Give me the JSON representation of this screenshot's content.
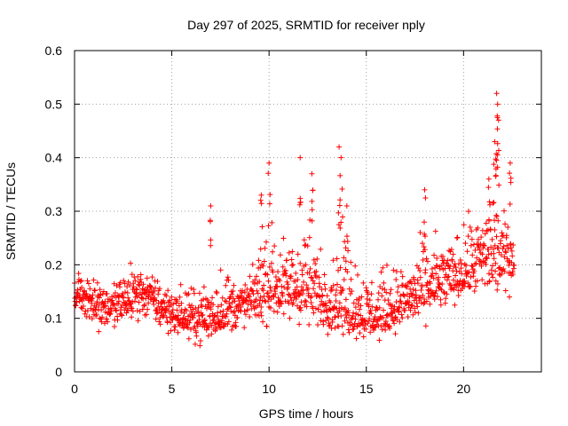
{
  "chart_data": {
    "type": "scatter",
    "title": "Day 297 of 2025, SRMTID for receiver nply",
    "xlabel": "GPS time / hours",
    "ylabel": "SRMTID / TECUs",
    "xlim": [
      0,
      24
    ],
    "ylim": [
      0,
      0.6
    ],
    "xticks": [
      0,
      5,
      10,
      15,
      20
    ],
    "yticks": [
      0,
      0.1,
      0.2,
      0.3,
      0.4,
      0.5,
      0.6
    ],
    "x_tick_labels": [
      "0",
      "5",
      "10",
      "15",
      "20"
    ],
    "y_tick_labels": [
      "0",
      "0.1",
      "0.2",
      "0.3",
      "0.4",
      "0.5",
      "0.6"
    ],
    "grid": true,
    "marker": "+",
    "color": "#ff0000",
    "envelope": {
      "description": "Approximate per-hour band of the scattered SRMTID values (lower, typical, upper) estimated from the plot",
      "hours": [
        0,
        0.5,
        1,
        1.5,
        2,
        2.5,
        3,
        3.5,
        4,
        4.5,
        5,
        5.5,
        6,
        6.5,
        7,
        7.5,
        8,
        8.5,
        9,
        9.5,
        10,
        10.5,
        11,
        11.5,
        12,
        12.5,
        13,
        13.5,
        14,
        14.5,
        15,
        15.5,
        16,
        16.5,
        17,
        17.5,
        18,
        18.5,
        19,
        19.5,
        20,
        20.5,
        21,
        21.5,
        22,
        22.5
      ],
      "lower": [
        0.1,
        0.08,
        0.07,
        0.06,
        0.07,
        0.07,
        0.08,
        0.08,
        0.07,
        0.06,
        0.06,
        0.06,
        0.05,
        0.04,
        0.03,
        0.05,
        0.06,
        0.06,
        0.08,
        0.08,
        0.05,
        0.05,
        0.07,
        0.06,
        0.07,
        0.07,
        0.06,
        0.05,
        0.05,
        0.05,
        0.05,
        0.04,
        0.06,
        0.06,
        0.07,
        0.07,
        0.08,
        0.08,
        0.09,
        0.1,
        0.11,
        0.12,
        0.11,
        0.11,
        0.11,
        0.14
      ],
      "typical": [
        0.15,
        0.14,
        0.13,
        0.12,
        0.12,
        0.13,
        0.14,
        0.15,
        0.14,
        0.12,
        0.11,
        0.1,
        0.1,
        0.1,
        0.1,
        0.11,
        0.12,
        0.12,
        0.13,
        0.14,
        0.17,
        0.16,
        0.15,
        0.16,
        0.15,
        0.14,
        0.13,
        0.13,
        0.12,
        0.11,
        0.1,
        0.1,
        0.11,
        0.12,
        0.13,
        0.14,
        0.15,
        0.16,
        0.17,
        0.18,
        0.19,
        0.2,
        0.21,
        0.22,
        0.21,
        0.22
      ],
      "upper": [
        0.25,
        0.21,
        0.2,
        0.18,
        0.18,
        0.21,
        0.24,
        0.2,
        0.19,
        0.19,
        0.17,
        0.18,
        0.17,
        0.18,
        0.21,
        0.23,
        0.21,
        0.19,
        0.2,
        0.25,
        0.33,
        0.28,
        0.26,
        0.34,
        0.36,
        0.28,
        0.22,
        0.28,
        0.33,
        0.26,
        0.22,
        0.2,
        0.23,
        0.22,
        0.22,
        0.24,
        0.29,
        0.28,
        0.27,
        0.26,
        0.3,
        0.32,
        0.34,
        0.4,
        0.33,
        0.3
      ]
    },
    "spikes": [
      {
        "x": 7.0,
        "y": 0.31
      },
      {
        "x": 9.6,
        "y": 0.33
      },
      {
        "x": 10.0,
        "y": 0.39
      },
      {
        "x": 11.6,
        "y": 0.4
      },
      {
        "x": 12.2,
        "y": 0.37
      },
      {
        "x": 13.6,
        "y": 0.42
      },
      {
        "x": 13.7,
        "y": 0.4
      },
      {
        "x": 14.0,
        "y": 0.31
      },
      {
        "x": 18.0,
        "y": 0.34
      },
      {
        "x": 21.3,
        "y": 0.36
      },
      {
        "x": 21.6,
        "y": 0.43
      },
      {
        "x": 21.7,
        "y": 0.52
      },
      {
        "x": 21.75,
        "y": 0.5
      },
      {
        "x": 21.8,
        "y": 0.47
      },
      {
        "x": 22.4,
        "y": 0.39
      }
    ]
  }
}
